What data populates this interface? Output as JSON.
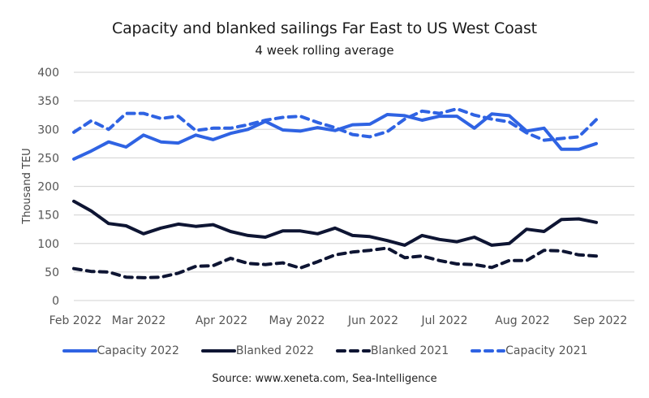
{
  "chart_data": {
    "type": "line",
    "title": "Capacity and blanked sailings Far East to US West Coast",
    "subtitle": "4 week rolling average",
    "xlabel": "",
    "ylabel": "Thousand TEU",
    "ylim": [
      0,
      400
    ],
    "yticks": [
      0,
      50,
      100,
      150,
      200,
      250,
      300,
      350,
      400
    ],
    "xtick_labels": [
      "Feb 2022",
      "Mar 2022",
      "Apr 2022",
      "May 2022",
      "Jun 2022",
      "Jul 2022",
      "Aug 2022",
      "Sep 2022"
    ],
    "xtick_week_index": [
      0,
      4,
      9,
      13,
      17,
      21,
      26,
      30
    ],
    "x_unit": "week",
    "grid": true,
    "legend_position": "bottom",
    "series": [
      {
        "name": "Capacity 2022",
        "color": "#2f63e3",
        "style": "solid",
        "values": [
          248,
          262,
          278,
          269,
          290,
          278,
          276,
          290,
          282,
          293,
          300,
          314,
          299,
          297,
          303,
          298,
          308,
          309,
          326,
          324,
          316,
          323,
          323,
          302,
          327,
          324,
          297,
          302,
          265,
          265,
          275
        ]
      },
      {
        "name": "Blanked 2022",
        "color": "#0e1533",
        "style": "solid",
        "values": [
          174,
          157,
          135,
          131,
          117,
          127,
          134,
          130,
          133,
          121,
          114,
          111,
          122,
          122,
          117,
          127,
          114,
          112,
          105,
          97,
          114,
          107,
          103,
          111,
          97,
          100,
          125,
          121,
          142,
          143,
          137
        ]
      },
      {
        "name": "Blanked 2021",
        "color": "#0e1533",
        "style": "dashed",
        "values": [
          56,
          51,
          50,
          41,
          40,
          41,
          48,
          60,
          61,
          74,
          65,
          63,
          66,
          57,
          68,
          80,
          85,
          88,
          92,
          75,
          78,
          70,
          64,
          63,
          58,
          70,
          70,
          88,
          87,
          80,
          78
        ]
      },
      {
        "name": "Capacity 2021",
        "color": "#2f63e3",
        "style": "dashed",
        "values": [
          295,
          315,
          300,
          328,
          328,
          319,
          323,
          298,
          302,
          302,
          308,
          316,
          321,
          323,
          312,
          303,
          291,
          287,
          296,
          318,
          332,
          328,
          336,
          325,
          318,
          313,
          294,
          281,
          284,
          287,
          317
        ]
      }
    ],
    "source": "Source: www.xeneta.com, Sea-Intelligence"
  }
}
